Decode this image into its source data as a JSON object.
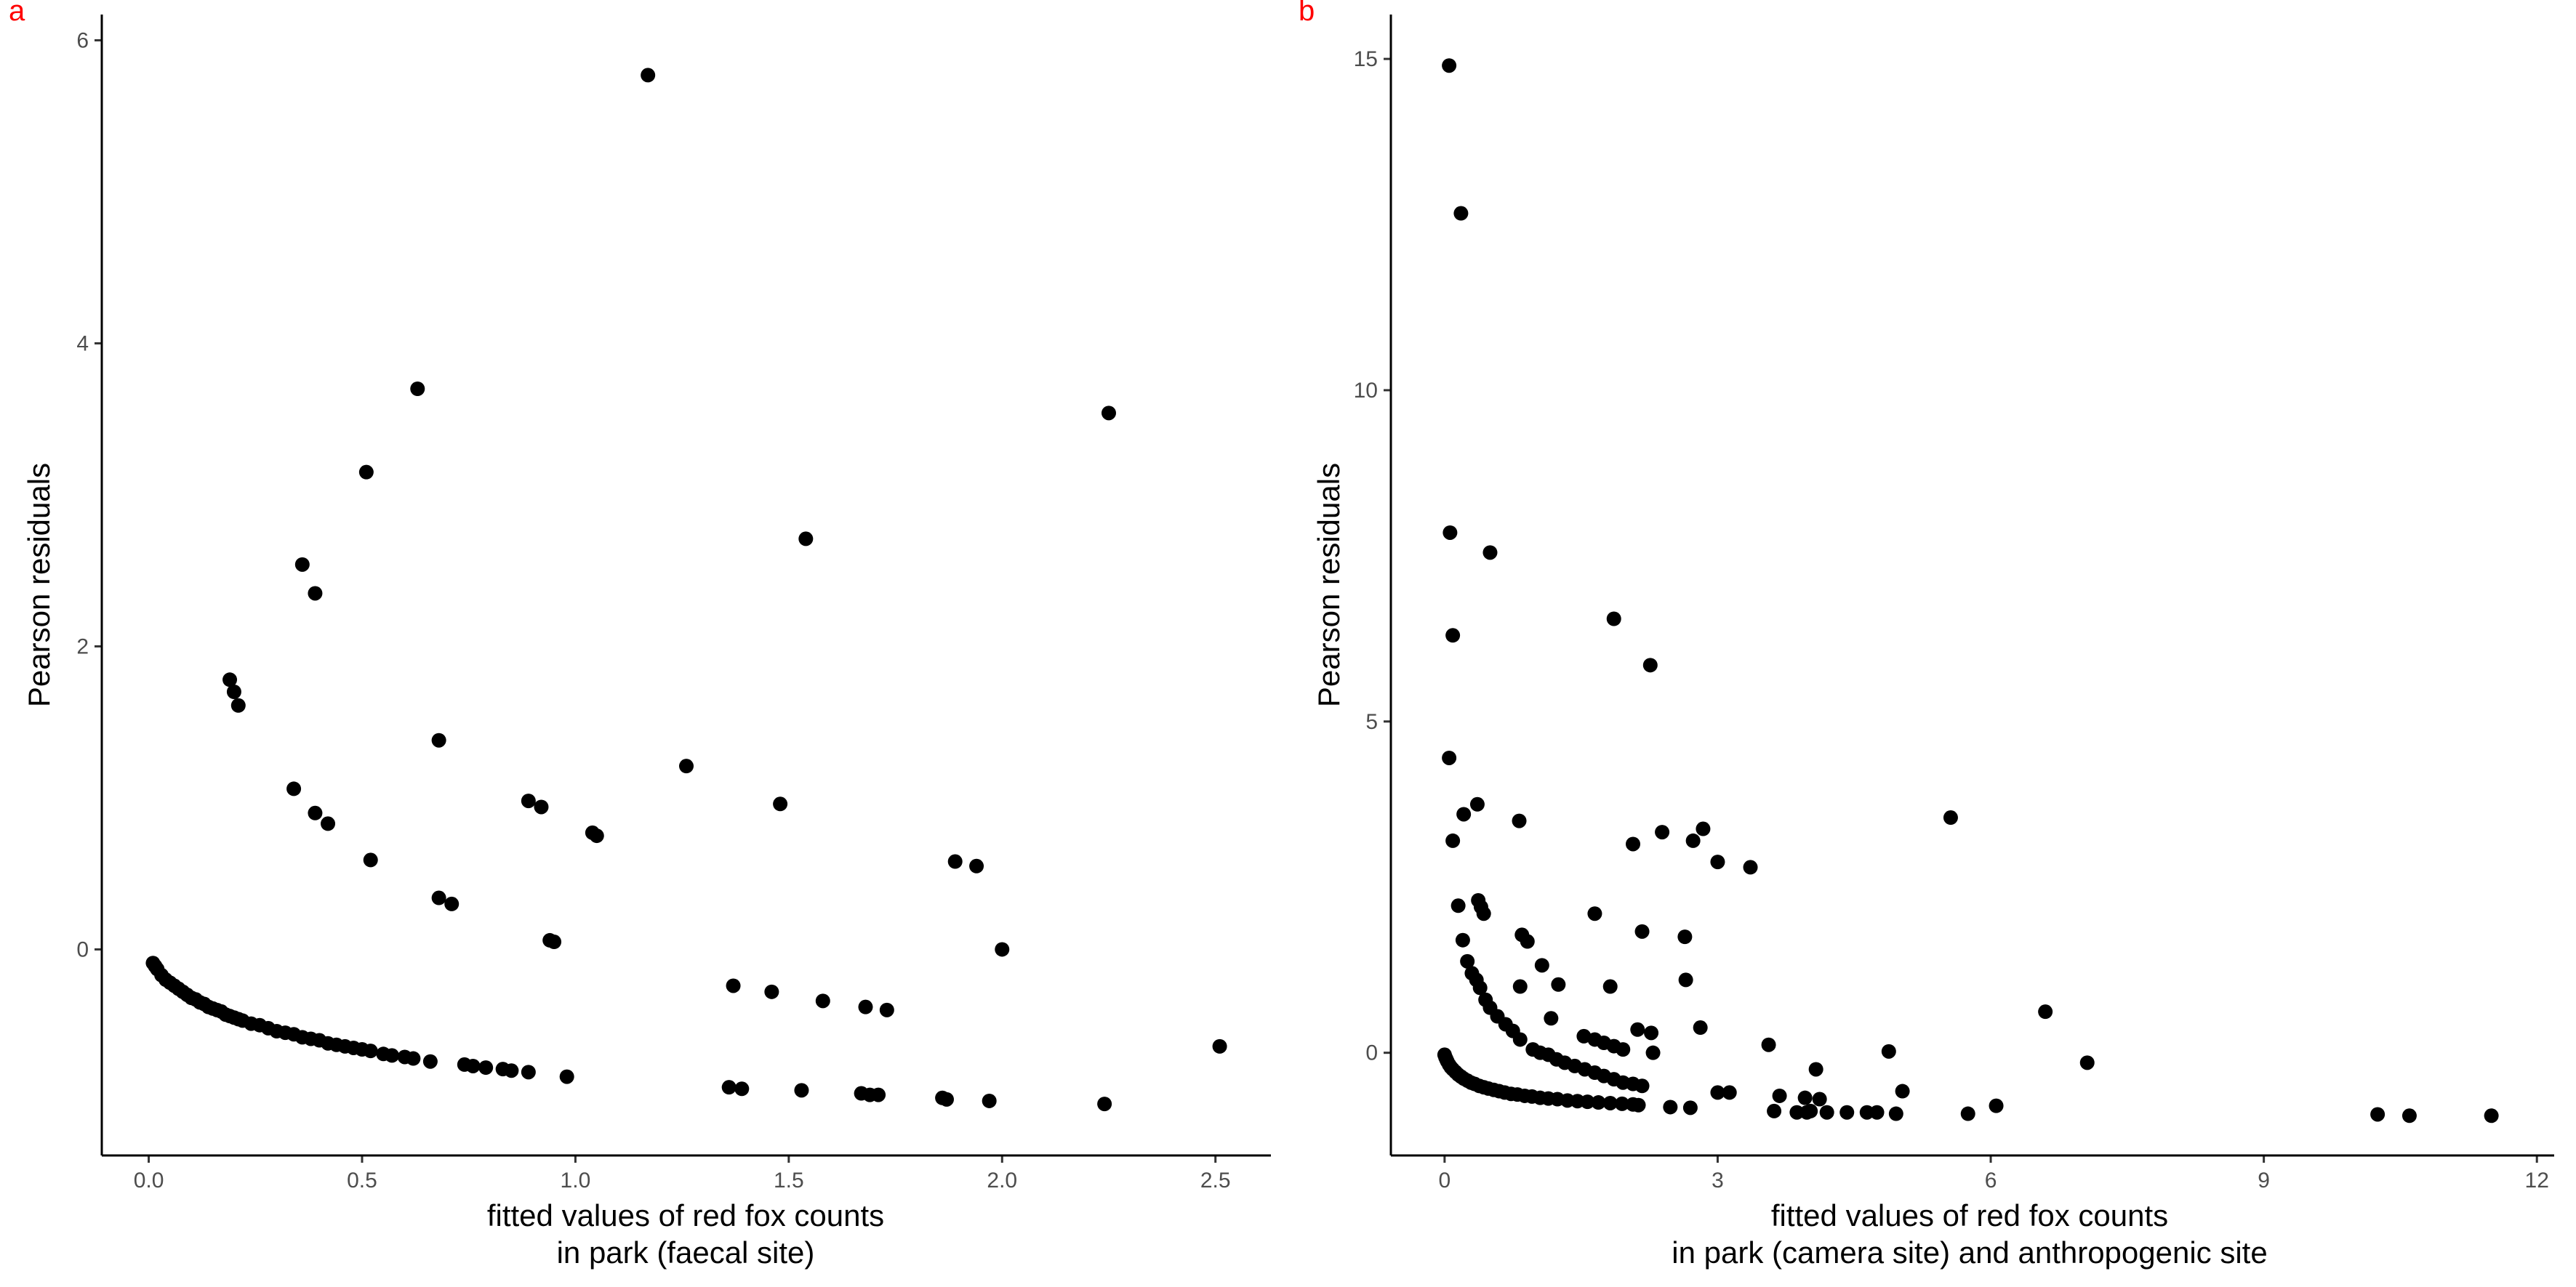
{
  "colors": {
    "points": "#000000",
    "panel_tag": "#ff0000",
    "tick_text": "#4d4d4d",
    "axis": "#000000"
  },
  "chart_data": [
    {
      "type": "scatter",
      "panel_label": "a",
      "xlabel": "fitted values of red fox counts",
      "xlabel_line2": "in park (faecal site)",
      "ylabel": "Pearson residuals",
      "xlim": [
        -0.11,
        2.63
      ],
      "ylim": [
        -1.36,
        6.17
      ],
      "xticks": [
        0,
        0.5,
        1,
        1.5,
        2,
        2.5
      ],
      "xtick_labels": [
        "0.0",
        "0.5",
        "1.0",
        "1.5",
        "2.0",
        "2.5"
      ],
      "yticks": [
        0,
        2,
        4,
        6
      ],
      "ytick_labels": [
        "0",
        "2",
        "4",
        "6"
      ],
      "grid": false,
      "series": [
        {
          "points": [
            [
              0.01,
              -0.09
            ],
            [
              0.015,
              -0.11
            ],
            [
              0.02,
              -0.13
            ],
            [
              0.03,
              -0.17
            ],
            [
              0.04,
              -0.2
            ],
            [
              0.05,
              -0.22
            ],
            [
              0.06,
              -0.24
            ],
            [
              0.07,
              -0.26
            ],
            [
              0.08,
              -0.28
            ],
            [
              0.09,
              -0.3
            ],
            [
              0.1,
              -0.32
            ],
            [
              0.11,
              -0.33
            ],
            [
              0.12,
              -0.35
            ],
            [
              0.13,
              -0.36
            ],
            [
              0.14,
              -0.38
            ],
            [
              0.15,
              -0.39
            ],
            [
              0.16,
              -0.4
            ],
            [
              0.17,
              -0.41
            ],
            [
              0.18,
              -0.43
            ],
            [
              0.19,
              -0.44
            ],
            [
              0.2,
              -0.45
            ],
            [
              0.21,
              -0.46
            ],
            [
              0.22,
              -0.47
            ],
            [
              0.24,
              -0.49
            ],
            [
              0.26,
              -0.5
            ],
            [
              0.28,
              -0.52
            ],
            [
              0.3,
              -0.54
            ],
            [
              0.32,
              -0.55
            ],
            [
              0.34,
              -0.56
            ],
            [
              0.36,
              -0.58
            ],
            [
              0.38,
              -0.59
            ],
            [
              0.4,
              -0.6
            ],
            [
              0.42,
              -0.62
            ],
            [
              0.44,
              -0.63
            ],
            [
              0.46,
              -0.64
            ],
            [
              0.48,
              -0.65
            ],
            [
              0.5,
              -0.66
            ],
            [
              0.52,
              -0.67
            ],
            [
              0.55,
              -0.69
            ],
            [
              0.57,
              -0.7
            ],
            [
              0.6,
              -0.71
            ],
            [
              0.62,
              -0.72
            ],
            [
              0.66,
              -0.74
            ],
            [
              0.74,
              -0.76
            ],
            [
              0.76,
              -0.77
            ],
            [
              0.79,
              -0.78
            ],
            [
              0.83,
              -0.79
            ],
            [
              0.85,
              -0.8
            ],
            [
              0.89,
              -0.81
            ],
            [
              0.98,
              -0.84
            ],
            [
              1.36,
              -0.91
            ],
            [
              1.39,
              -0.92
            ],
            [
              1.53,
              -0.93
            ],
            [
              1.67,
              -0.95
            ],
            [
              1.69,
              -0.96
            ],
            [
              1.71,
              -0.96
            ],
            [
              1.86,
              -0.98
            ],
            [
              1.87,
              -0.99
            ],
            [
              1.97,
              -1.0
            ],
            [
              2.24,
              -1.02
            ],
            [
              2.51,
              -0.64
            ],
            [
              1.17,
              5.77
            ],
            [
              0.63,
              3.7
            ],
            [
              2.25,
              3.54
            ],
            [
              0.51,
              3.15
            ],
            [
              1.54,
              2.71
            ],
            [
              0.36,
              2.54
            ],
            [
              0.39,
              2.35
            ],
            [
              0.19,
              1.78
            ],
            [
              0.2,
              1.7
            ],
            [
              0.21,
              1.61
            ],
            [
              0.68,
              1.38
            ],
            [
              1.26,
              1.21
            ],
            [
              0.34,
              1.06
            ],
            [
              1.48,
              0.96
            ],
            [
              0.89,
              0.98
            ],
            [
              0.92,
              0.94
            ],
            [
              0.39,
              0.9
            ],
            [
              0.42,
              0.83
            ],
            [
              1.04,
              0.77
            ],
            [
              1.05,
              0.75
            ],
            [
              0.52,
              0.59
            ],
            [
              1.89,
              0.58
            ],
            [
              1.94,
              0.55
            ],
            [
              0.68,
              0.34
            ],
            [
              0.71,
              0.3
            ],
            [
              0.94,
              0.06
            ],
            [
              0.95,
              0.05
            ],
            [
              2.0,
              0.0
            ],
            [
              1.37,
              -0.24
            ],
            [
              1.46,
              -0.28
            ],
            [
              1.58,
              -0.34
            ],
            [
              1.68,
              -0.38
            ],
            [
              1.73,
              -0.4
            ]
          ]
        }
      ]
    },
    {
      "type": "scatter",
      "panel_label": "b",
      "xlabel": "fitted values of red fox counts",
      "xlabel_line2": "in park (camera site) and anthropogenic site",
      "ylabel": "Pearson residuals",
      "xlim": [
        -0.59,
        12.19
      ],
      "ylim": [
        -1.55,
        15.67
      ],
      "xticks": [
        0,
        3,
        6,
        9,
        12
      ],
      "xtick_labels": [
        "0",
        "3",
        "6",
        "9",
        "12"
      ],
      "yticks": [
        0,
        5,
        10,
        15
      ],
      "ytick_labels": [
        "0",
        "5",
        "10",
        "15"
      ],
      "grid": false,
      "series": [
        {
          "points": [
            [
              0.0,
              -0.03
            ],
            [
              0.01,
              -0.07
            ],
            [
              0.02,
              -0.1
            ],
            [
              0.03,
              -0.13
            ],
            [
              0.05,
              -0.18
            ],
            [
              0.07,
              -0.22
            ],
            [
              0.09,
              -0.25
            ],
            [
              0.12,
              -0.29
            ],
            [
              0.15,
              -0.33
            ],
            [
              0.18,
              -0.36
            ],
            [
              0.21,
              -0.39
            ],
            [
              0.25,
              -0.42
            ],
            [
              0.29,
              -0.45
            ],
            [
              0.33,
              -0.47
            ],
            [
              0.38,
              -0.5
            ],
            [
              0.43,
              -0.52
            ],
            [
              0.48,
              -0.54
            ],
            [
              0.54,
              -0.56
            ],
            [
              0.6,
              -0.58
            ],
            [
              0.66,
              -0.6
            ],
            [
              0.73,
              -0.62
            ],
            [
              0.8,
              -0.63
            ],
            [
              0.88,
              -0.65
            ],
            [
              0.96,
              -0.66
            ],
            [
              1.05,
              -0.68
            ],
            [
              1.14,
              -0.69
            ],
            [
              1.24,
              -0.7
            ],
            [
              1.35,
              -0.72
            ],
            [
              1.46,
              -0.73
            ],
            [
              1.57,
              -0.74
            ],
            [
              1.69,
              -0.75
            ],
            [
              1.82,
              -0.76
            ],
            [
              1.95,
              -0.77
            ],
            [
              2.07,
              -0.78
            ],
            [
              2.13,
              -0.79
            ],
            [
              0.05,
              14.9
            ],
            [
              0.18,
              12.67
            ],
            [
              0.06,
              7.85
            ],
            [
              0.5,
              7.55
            ],
            [
              0.09,
              6.3
            ],
            [
              1.86,
              6.55
            ],
            [
              2.26,
              5.85
            ],
            [
              0.05,
              4.45
            ],
            [
              0.36,
              3.75
            ],
            [
              0.21,
              3.6
            ],
            [
              0.82,
              3.5
            ],
            [
              5.56,
              3.55
            ],
            [
              2.39,
              3.33
            ],
            [
              2.84,
              3.38
            ],
            [
              2.73,
              3.2
            ],
            [
              0.09,
              3.2
            ],
            [
              2.07,
              3.15
            ],
            [
              3.0,
              2.88
            ],
            [
              3.36,
              2.8
            ],
            [
              0.15,
              2.22
            ],
            [
              0.37,
              2.3
            ],
            [
              0.4,
              2.2
            ],
            [
              0.43,
              2.1
            ],
            [
              1.65,
              2.1
            ],
            [
              0.2,
              1.7
            ],
            [
              0.85,
              1.78
            ],
            [
              0.91,
              1.68
            ],
            [
              2.17,
              1.83
            ],
            [
              2.64,
              1.75
            ],
            [
              0.25,
              1.38
            ],
            [
              1.07,
              1.32
            ],
            [
              0.3,
              1.2
            ],
            [
              0.35,
              1.1
            ],
            [
              0.39,
              0.98
            ],
            [
              0.83,
              1.0
            ],
            [
              1.25,
              1.03
            ],
            [
              1.82,
              1.0
            ],
            [
              2.65,
              1.1
            ],
            [
              0.45,
              0.8
            ],
            [
              0.5,
              0.68
            ],
            [
              0.58,
              0.55
            ],
            [
              1.17,
              0.52
            ],
            [
              0.67,
              0.43
            ],
            [
              0.75,
              0.33
            ],
            [
              2.81,
              0.38
            ],
            [
              0.83,
              0.2
            ],
            [
              1.53,
              0.25
            ],
            [
              1.65,
              0.2
            ],
            [
              1.75,
              0.15
            ],
            [
              1.86,
              0.1
            ],
            [
              1.96,
              0.05
            ],
            [
              2.12,
              0.35
            ],
            [
              2.27,
              0.3
            ],
            [
              0.97,
              0.05
            ],
            [
              1.05,
              0.0
            ],
            [
              1.14,
              -0.03
            ],
            [
              1.23,
              -0.1
            ],
            [
              1.32,
              -0.15
            ],
            [
              1.43,
              -0.2
            ],
            [
              1.54,
              -0.25
            ],
            [
              1.65,
              -0.3
            ],
            [
              1.75,
              -0.35
            ],
            [
              1.86,
              -0.4
            ],
            [
              1.96,
              -0.45
            ],
            [
              2.07,
              -0.47
            ],
            [
              2.17,
              -0.5
            ],
            [
              2.29,
              0.0
            ],
            [
              3.56,
              0.12
            ],
            [
              6.6,
              0.62
            ],
            [
              7.06,
              -0.15
            ],
            [
              4.08,
              -0.25
            ],
            [
              4.88,
              0.02
            ],
            [
              3.0,
              -0.6
            ],
            [
              3.13,
              -0.6
            ],
            [
              3.68,
              -0.65
            ],
            [
              3.96,
              -0.68
            ],
            [
              4.12,
              -0.7
            ],
            [
              5.03,
              -0.58
            ],
            [
              2.48,
              -0.82
            ],
            [
              2.7,
              -0.83
            ],
            [
              3.62,
              -0.88
            ],
            [
              3.87,
              -0.9
            ],
            [
              3.98,
              -0.9
            ],
            [
              4.02,
              -0.88
            ],
            [
              4.2,
              -0.9
            ],
            [
              4.42,
              -0.9
            ],
            [
              4.64,
              -0.9
            ],
            [
              4.75,
              -0.9
            ],
            [
              4.96,
              -0.92
            ],
            [
              5.75,
              -0.92
            ],
            [
              6.06,
              -0.8
            ],
            [
              10.25,
              -0.93
            ],
            [
              10.6,
              -0.95
            ],
            [
              11.5,
              -0.95
            ]
          ]
        }
      ]
    }
  ]
}
